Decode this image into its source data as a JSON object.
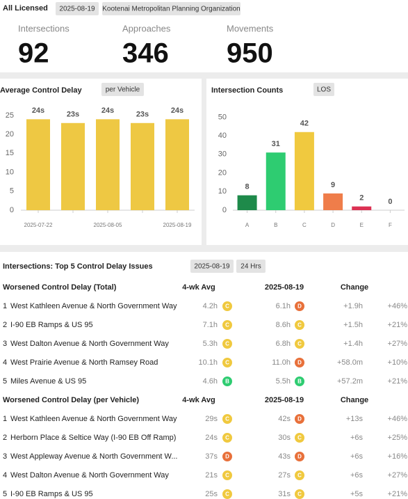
{
  "header": {
    "title": "All Licensed",
    "date": "2025-08-19",
    "organization": "Kootenai Metropolitan Planning Organization"
  },
  "kpis": [
    {
      "label": "Intersections",
      "value": 92
    },
    {
      "label": "Approaches",
      "value": 346
    },
    {
      "label": "Movements",
      "value": 950
    }
  ],
  "chart_data": [
    {
      "type": "bar",
      "title": "Average Control Delay",
      "toggle": "per Vehicle",
      "categories": [
        "2025-07-22",
        null,
        "2025-08-05",
        null,
        "2025-08-19"
      ],
      "values": [
        24,
        23,
        24,
        23,
        24
      ],
      "value_labels": [
        "24s",
        "23s",
        "24s",
        "23s",
        "24s"
      ],
      "color": "#eec843",
      "ylim": [
        0,
        27
      ],
      "yticks": [
        0,
        5,
        10,
        15,
        20,
        25
      ],
      "grid": false
    },
    {
      "type": "bar",
      "title": "Intersection Counts",
      "toggle": "LOS",
      "categories": [
        "A",
        "B",
        "C",
        "D",
        "E",
        "F"
      ],
      "values": [
        8,
        31,
        42,
        9,
        2,
        0
      ],
      "colors": [
        "#1e8a4a",
        "#2ecc71",
        "#f0c93f",
        "#ef7d4a",
        "#dc3153",
        "#cccccc"
      ],
      "ylim": [
        0,
        55
      ],
      "yticks": [
        0,
        10,
        20,
        30,
        40,
        50
      ],
      "grid": false
    }
  ],
  "table": {
    "title": "Intersections: Top 5 Control Delay Issues",
    "date": "2025-08-19",
    "period": "24 Hrs",
    "sections": [
      {
        "header": [
          "Worsened Control Delay (Total)",
          "4-wk Avg",
          "2025-08-19",
          "Change"
        ],
        "rows": [
          [
            "1",
            "West Kathleen Avenue & North Government Way",
            "4.2h",
            "C",
            "6.1h",
            "D",
            "+1.9h",
            "+46%"
          ],
          [
            "2",
            "I-90 EB Ramps & US 95",
            "7.1h",
            "C",
            "8.6h",
            "C",
            "+1.5h",
            "+21%"
          ],
          [
            "3",
            "West Dalton Avenue & North Government Way",
            "5.3h",
            "C",
            "6.8h",
            "C",
            "+1.4h",
            "+27%"
          ],
          [
            "4",
            "West Prairie Avenue & North Ramsey Road",
            "10.1h",
            "C",
            "11.0h",
            "D",
            "+58.0m",
            "+10%"
          ],
          [
            "5",
            "Miles Avenue & US 95",
            "4.6h",
            "B",
            "5.5h",
            "B",
            "+57.2m",
            "+21%"
          ]
        ]
      },
      {
        "header": [
          "Worsened Control Delay (per Vehicle)",
          "4-wk Avg",
          "2025-08-19",
          "Change"
        ],
        "rows": [
          [
            "1",
            "West Kathleen Avenue & North Government Way",
            "29s",
            "C",
            "42s",
            "D",
            "+13s",
            "+46%"
          ],
          [
            "2",
            "Herborn Place & Seltice Way (I-90 EB Off Ramp)",
            "24s",
            "C",
            "30s",
            "C",
            "+6s",
            "+25%"
          ],
          [
            "3",
            "West Appleway Avenue & North Government W...",
            "37s",
            "D",
            "43s",
            "D",
            "+6s",
            "+16%"
          ],
          [
            "4",
            "West Dalton Avenue & North Government Way",
            "21s",
            "C",
            "27s",
            "C",
            "+6s",
            "+27%"
          ],
          [
            "5",
            "I-90 EB Ramps & US 95",
            "25s",
            "C",
            "31s",
            "C",
            "+5s",
            "+21%"
          ]
        ]
      }
    ]
  }
}
